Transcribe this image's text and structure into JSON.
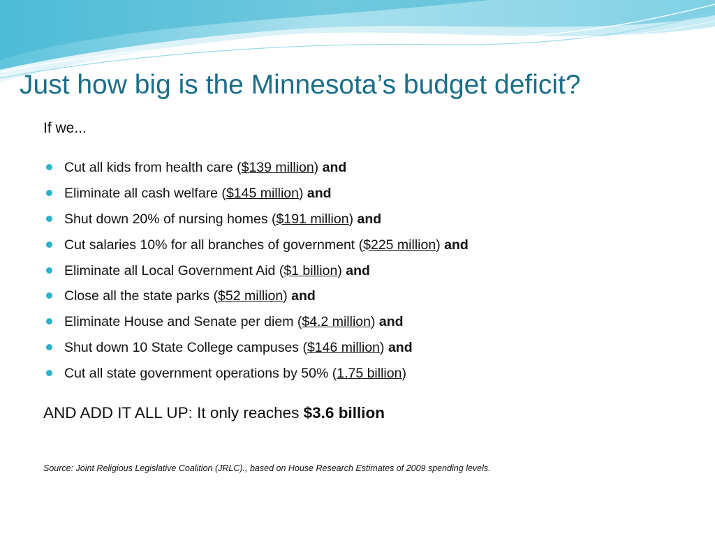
{
  "slide": {
    "title": "Just how big is the Minnesota’s budget deficit?",
    "intro": "If we...",
    "bullets": [
      {
        "prefix": "Cut all kids from health care (",
        "amount": "$139 million",
        "suffix": ")",
        "conjunction": "and"
      },
      {
        "prefix": "Eliminate all cash welfare (",
        "amount": "$145 million",
        "suffix": ")",
        "conjunction": "and"
      },
      {
        "prefix": "Shut down 20% of nursing homes (",
        "amount": "$191 million",
        "suffix": ")",
        "conjunction": "and"
      },
      {
        "prefix": "Cut salaries 10% for all branches of government (",
        "amount": "$225 million",
        "suffix": ")",
        "conjunction": "and"
      },
      {
        "prefix": "Eliminate all Local Government Aid (",
        "amount": "$1 billion",
        "suffix": ")",
        "conjunction": "and"
      },
      {
        "prefix": "Close all the state parks (",
        "amount": "$52 million",
        "suffix": ")",
        "conjunction": "and"
      },
      {
        "prefix": "Eliminate House and Senate per diem (",
        "amount": "$4.2 million",
        "suffix": ")",
        "conjunction": "and"
      },
      {
        "prefix": "Shut down 10 State College campuses (",
        "amount": "$146 million",
        "suffix": ")",
        "conjunction": "and"
      },
      {
        "prefix": "Cut all state government operations by 50% (",
        "amount": "1.75 billion",
        "suffix": ")",
        "conjunction": ""
      }
    ],
    "summary": {
      "prefix": "AND ADD IT ALL UP: It only reaches ",
      "total": "$3.6 billion"
    },
    "source": "Source:  Joint Religious Legislative Coalition (JRLC)., based on House Research Estimates of 2009 spending levels."
  },
  "colors": {
    "title": "#1b6e8a",
    "bullet": "#2bb3c8",
    "wave_light": "#d9f1f6",
    "wave_mid": "#9fdceb",
    "wave_dark": "#4cbfd8"
  }
}
